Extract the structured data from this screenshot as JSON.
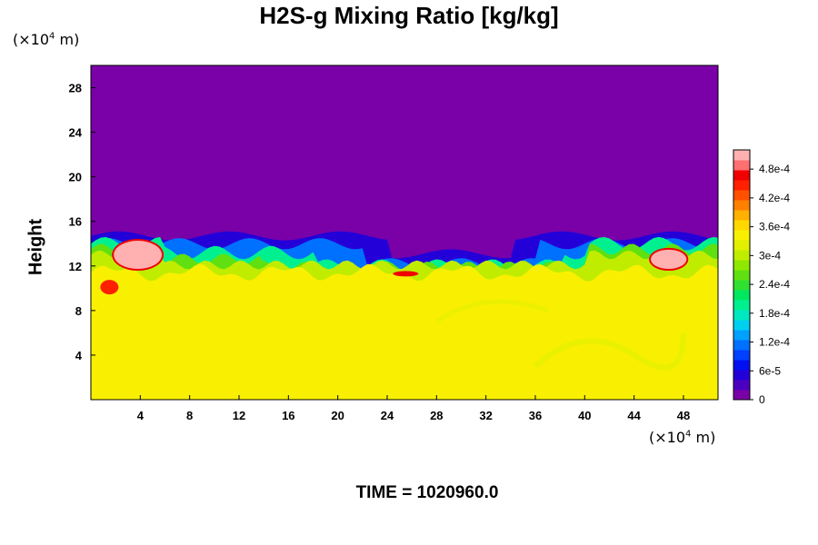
{
  "chart_data": {
    "type": "heatmap",
    "title": "H2S-g Mixing Ratio [kg/kg]",
    "ylabel": "Height",
    "xlabel": "",
    "x_unit": {
      "prefix": "(×10",
      "exp": "4",
      "suffix": " m)"
    },
    "y_unit": {
      "prefix": "(×10",
      "exp": "4",
      "suffix": " m)"
    },
    "x_ticks": [
      4,
      8,
      12,
      16,
      20,
      24,
      28,
      32,
      36,
      40,
      44,
      48
    ],
    "y_ticks": [
      4,
      8,
      12,
      16,
      20,
      24,
      28
    ],
    "xlim": [
      0,
      50.8
    ],
    "ylim": [
      0,
      30
    ],
    "colorbar": {
      "labels": [
        "0",
        "6e-5",
        "1.2e-4",
        "1.8e-4",
        "2.4e-4",
        "3e-4",
        "3.6e-4",
        "4.2e-4",
        "4.8e-4"
      ],
      "min": 0,
      "max": 0.00052,
      "colors": [
        "#7a00a8",
        "#4c00bf",
        "#2400d8",
        "#0010f0",
        "#0040ff",
        "#0070ff",
        "#00a0ff",
        "#00d0f0",
        "#00e8c0",
        "#00f090",
        "#00e860",
        "#30e030",
        "#60e010",
        "#90e800",
        "#c0ec00",
        "#e0f000",
        "#f8f000",
        "#ffd800",
        "#ffb000",
        "#ff8000",
        "#ff5000",
        "#ff2000",
        "#f00000",
        "#ff7070",
        "#ffb0b0"
      ]
    },
    "field_description": "Lower layer (0 to ~12) approx 3.4e-4; turbulent mixing layer ~11 to ~15; above ~15 approx 0; local maxima above 4.8e-4 near x=3-5 and x=46-48 at height ~12-14",
    "time_label": "TIME = 1020960.0"
  }
}
